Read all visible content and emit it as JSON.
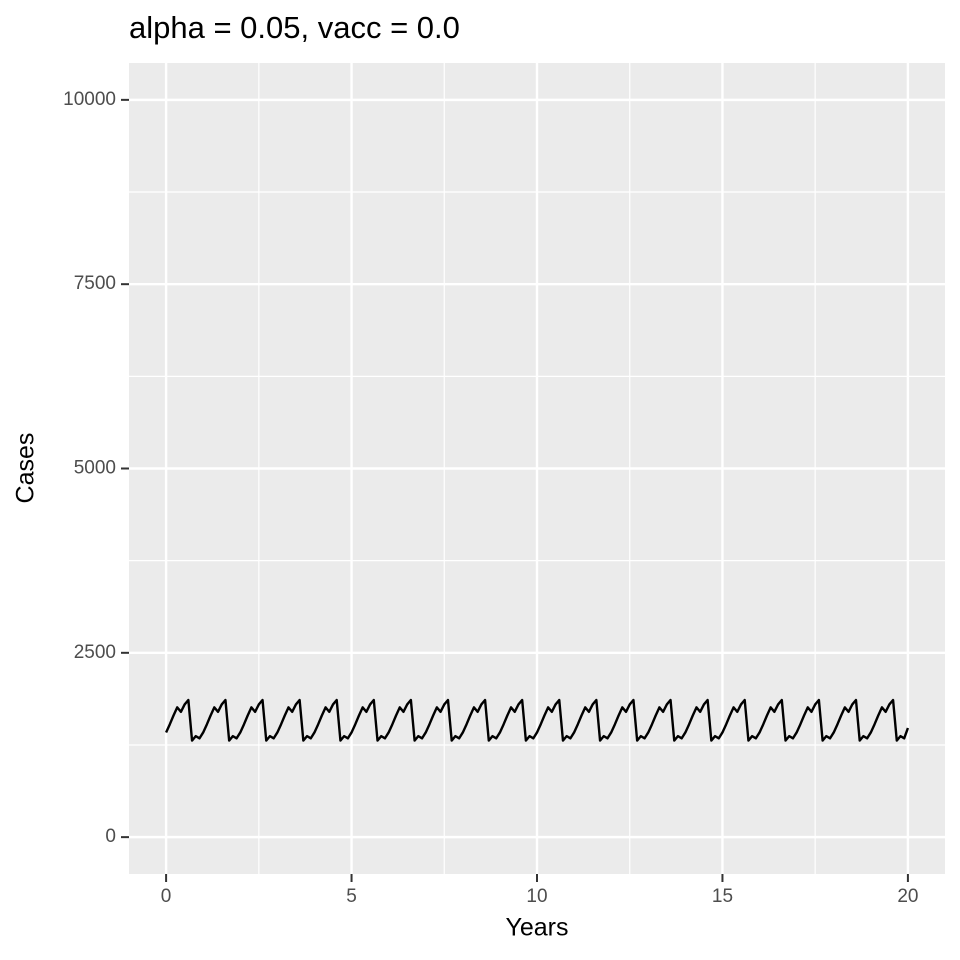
{
  "chart_data": {
    "type": "line",
    "title": "alpha = 0.05, vacc = 0.0",
    "xlabel": "Years",
    "ylabel": "Cases",
    "color": "#000000",
    "x": [
      0,
      0.1,
      0.2,
      0.3,
      0.4,
      0.5,
      0.6,
      0.7,
      0.8,
      0.9,
      1,
      1.1,
      1.2,
      1.3,
      1.4,
      1.5,
      1.6,
      1.7,
      1.8,
      1.9,
      2,
      2.1,
      2.2,
      2.3,
      2.4,
      2.5,
      2.6,
      2.7,
      2.8,
      2.9,
      3,
      3.1,
      3.2,
      3.3,
      3.4,
      3.5,
      3.6,
      3.7,
      3.8,
      3.9,
      4,
      4.1,
      4.2,
      4.3,
      4.4,
      4.5,
      4.6,
      4.7,
      4.8,
      4.9,
      5,
      5.1,
      5.2,
      5.3,
      5.4,
      5.5,
      5.6,
      5.7,
      5.8,
      5.9,
      6,
      6.1,
      6.2,
      6.3,
      6.4,
      6.5,
      6.6,
      6.7,
      6.8,
      6.9,
      7,
      7.1,
      7.2,
      7.3,
      7.4,
      7.5,
      7.6,
      7.7,
      7.8,
      7.9,
      8,
      8.1,
      8.2,
      8.3,
      8.4,
      8.5,
      8.6,
      8.7,
      8.8,
      8.9,
      9,
      9.1,
      9.2,
      9.3,
      9.4,
      9.5,
      9.6,
      9.7,
      9.8,
      9.9,
      10,
      10.1,
      10.2,
      10.3,
      10.4,
      10.5,
      10.6,
      10.7,
      10.8,
      10.9,
      11,
      11.1,
      11.2,
      11.3,
      11.4,
      11.5,
      11.6,
      11.7,
      11.8,
      11.9,
      12,
      12.1,
      12.2,
      12.3,
      12.4,
      12.5,
      12.6,
      12.7,
      12.8,
      12.9,
      13,
      13.1,
      13.2,
      13.3,
      13.4,
      13.5,
      13.6,
      13.7,
      13.8,
      13.9,
      14,
      14.1,
      14.2,
      14.3,
      14.4,
      14.5,
      14.6,
      14.7,
      14.8,
      14.9,
      15,
      15.1,
      15.2,
      15.3,
      15.4,
      15.5,
      15.6,
      15.7,
      15.8,
      15.9,
      16,
      16.1,
      16.2,
      16.3,
      16.4,
      16.5,
      16.6,
      16.7,
      16.8,
      16.9,
      17,
      17.1,
      17.2,
      17.3,
      17.4,
      17.5,
      17.6,
      17.7,
      17.8,
      17.9,
      18,
      18.1,
      18.2,
      18.3,
      18.4,
      18.5,
      18.6,
      18.7,
      18.8,
      18.9,
      19,
      19.1,
      19.2,
      19.3,
      19.4,
      19.5,
      19.6,
      19.7,
      19.8,
      19.9,
      20
    ],
    "values": [
      1420,
      1530,
      1650,
      1760,
      1700,
      1800,
      1860,
      1310,
      1370,
      1340,
      1420,
      1530,
      1650,
      1760,
      1700,
      1800,
      1860,
      1310,
      1370,
      1340,
      1420,
      1530,
      1650,
      1760,
      1700,
      1800,
      1860,
      1310,
      1370,
      1340,
      1420,
      1530,
      1650,
      1760,
      1700,
      1800,
      1860,
      1310,
      1370,
      1340,
      1420,
      1530,
      1650,
      1760,
      1700,
      1800,
      1860,
      1310,
      1370,
      1340,
      1420,
      1530,
      1650,
      1760,
      1700,
      1800,
      1860,
      1310,
      1370,
      1340,
      1420,
      1530,
      1650,
      1760,
      1700,
      1800,
      1860,
      1310,
      1370,
      1340,
      1420,
      1530,
      1650,
      1760,
      1700,
      1800,
      1860,
      1310,
      1370,
      1340,
      1420,
      1530,
      1650,
      1760,
      1700,
      1800,
      1860,
      1310,
      1370,
      1340,
      1420,
      1530,
      1650,
      1760,
      1700,
      1800,
      1860,
      1310,
      1370,
      1340,
      1420,
      1530,
      1650,
      1760,
      1700,
      1800,
      1860,
      1310,
      1370,
      1340,
      1420,
      1530,
      1650,
      1760,
      1700,
      1800,
      1860,
      1310,
      1370,
      1340,
      1420,
      1530,
      1650,
      1760,
      1700,
      1800,
      1860,
      1310,
      1370,
      1340,
      1420,
      1530,
      1650,
      1760,
      1700,
      1800,
      1860,
      1310,
      1370,
      1340,
      1420,
      1530,
      1650,
      1760,
      1700,
      1800,
      1860,
      1310,
      1370,
      1340,
      1420,
      1530,
      1650,
      1760,
      1700,
      1800,
      1860,
      1310,
      1370,
      1340,
      1420,
      1530,
      1650,
      1760,
      1700,
      1800,
      1860,
      1310,
      1370,
      1340,
      1420,
      1530,
      1650,
      1760,
      1700,
      1800,
      1860,
      1310,
      1370,
      1340,
      1420,
      1530,
      1650,
      1760,
      1700,
      1800,
      1860,
      1310,
      1370,
      1340,
      1420,
      1530,
      1650,
      1760,
      1700,
      1800,
      1860,
      1310,
      1370,
      1340,
      1480
    ],
    "xlim": [
      -1,
      21
    ],
    "ylim": [
      -500,
      10500
    ],
    "xticks": [
      0,
      5,
      10,
      15,
      20
    ],
    "yticks": [
      0,
      2500,
      5000,
      7500,
      10000
    ],
    "x_minor_ticks": [
      2.5,
      7.5,
      12.5,
      17.5
    ],
    "y_minor_ticks": [
      1250,
      3750,
      6250,
      8750
    ],
    "grid": true
  }
}
